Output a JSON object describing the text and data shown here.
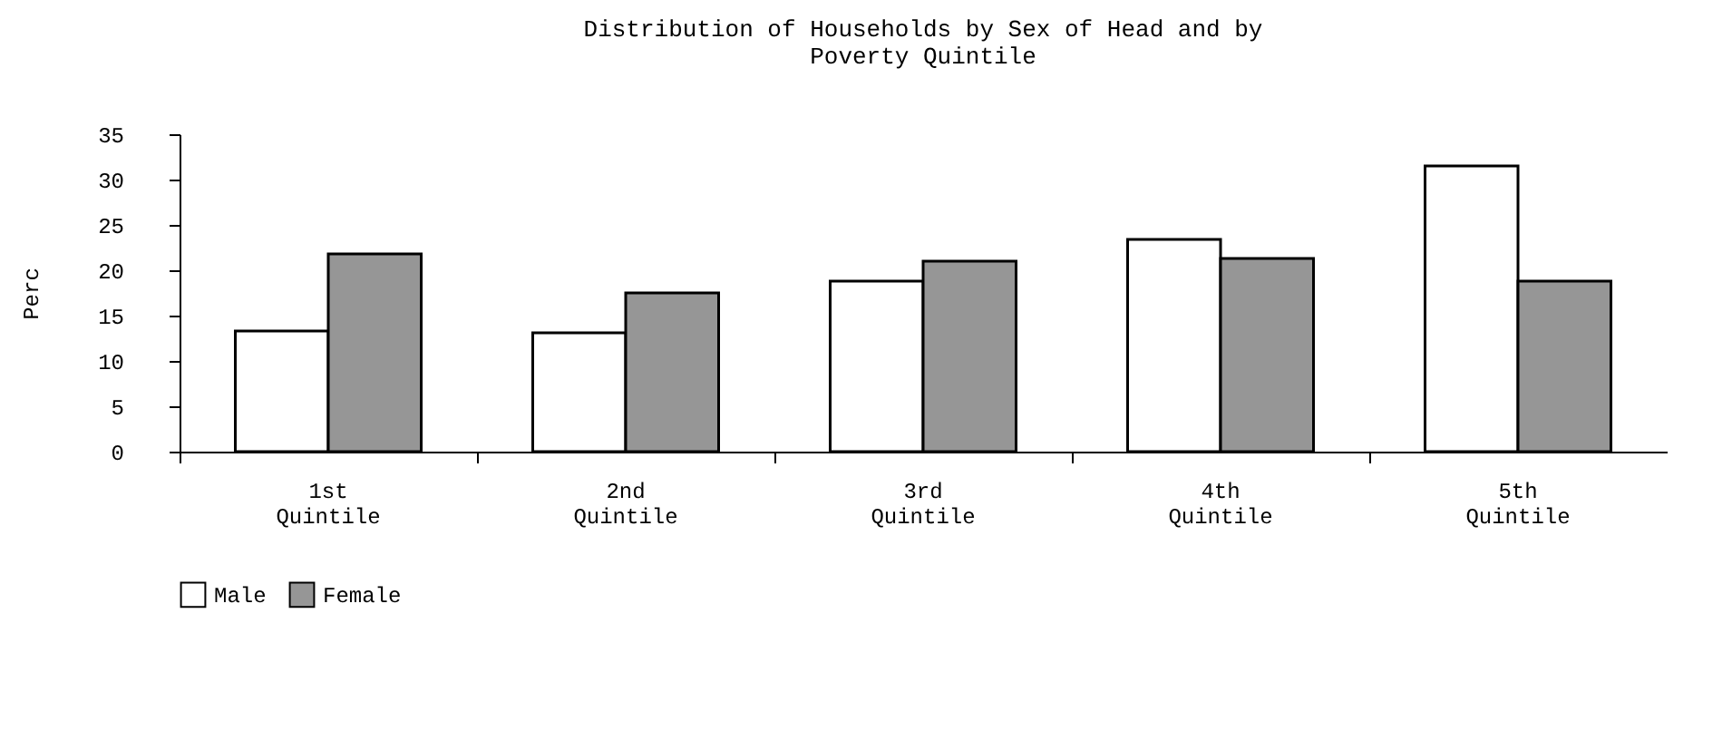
{
  "chart_data": {
    "type": "bar",
    "title": [
      "Distribution of Households by Sex of Head and by",
      "Poverty Quintile"
    ],
    "ylabel": "Perc",
    "categories": [
      "1st Quintile",
      "2nd Quintile",
      "3rd Quintile",
      "4th Quintile",
      "5th Quintile"
    ],
    "series": [
      {
        "name": "Male",
        "color": "#ffffff",
        "values": [
          13.3,
          13.1,
          18.8,
          23.4,
          31.5
        ]
      },
      {
        "name": "Female",
        "color": "#969696",
        "values": [
          21.8,
          17.5,
          21.0,
          21.3,
          18.8
        ]
      }
    ],
    "ylim": [
      0,
      35
    ],
    "yticks": [
      0,
      5,
      10,
      15,
      20,
      25,
      30,
      35
    ],
    "grid": false,
    "legend": "bottom"
  }
}
